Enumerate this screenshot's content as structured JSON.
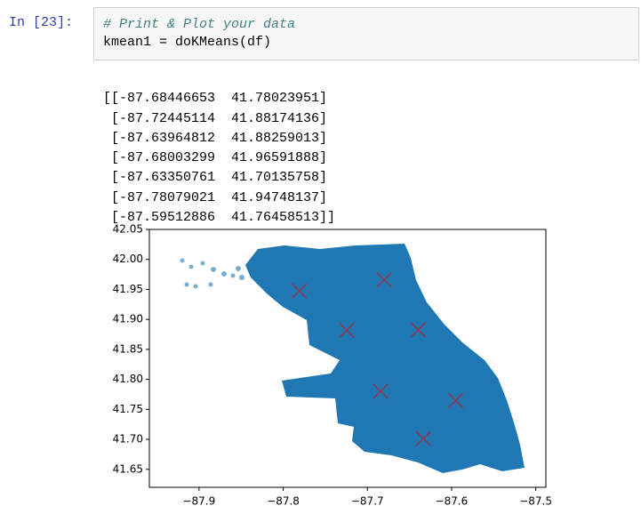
{
  "cell": {
    "prompt": "In [23]:",
    "code": [
      "# Print & Plot your data",
      "kmean1 = doKMeans(df)"
    ]
  },
  "output": {
    "lines": [
      "[[-87.68446653  41.78023951]",
      " [-87.72445114  41.88174136]",
      " [-87.63964812  41.88259013]",
      " [-87.68003299  41.96591888]",
      " [-87.63350761  41.70135758]",
      " [-87.78079021  41.94748137]",
      " [-87.59512886  41.76458513]]"
    ]
  },
  "chart_data": {
    "type": "scatter",
    "series": [
      {
        "color": "#8b3a50",
        "marker": "x",
        "x": [
          -87.68446653,
          -87.72445114,
          -87.63964812,
          -87.68003299,
          -87.63350761,
          -87.78079021,
          -87.59512886
        ],
        "values": [
          41.78023951,
          41.88174136,
          41.88259013,
          41.96591888,
          41.70135758,
          41.94748137,
          41.76458513
        ]
      }
    ],
    "xlim": [
      -87.959,
      -87.488
    ],
    "ylim": [
      41.62,
      42.05
    ],
    "xticks": [
      {
        "value": -87.9,
        "label": "−87.9"
      },
      {
        "value": -87.8,
        "label": "−87.8"
      },
      {
        "value": -87.7,
        "label": "−87.7"
      },
      {
        "value": -87.6,
        "label": "−87.6"
      },
      {
        "value": -87.5,
        "label": "−87.5"
      }
    ],
    "yticks": [
      41.65,
      {
        "value": 41.7,
        "label": "41.70"
      },
      41.75,
      {
        "value": 41.8,
        "label": "41.80"
      },
      41.85,
      {
        "value": 41.9,
        "label": "41.90"
      },
      41.95,
      {
        "value": 42,
        "label": "42.00"
      },
      42.05
    ]
  }
}
